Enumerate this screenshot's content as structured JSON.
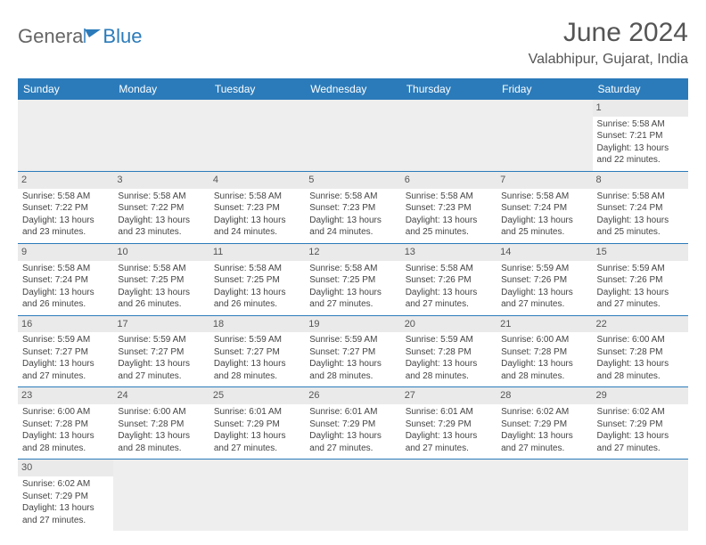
{
  "logo": {
    "part1": "Genera",
    "part2": "Blue"
  },
  "title": "June 2024",
  "location": "Valabhipur, Gujarat, India",
  "colors": {
    "header_bg": "#2b7bba",
    "header_fg": "#ffffff",
    "daynum_bg": "#eaeaea",
    "border": "#2b7bba",
    "text": "#444444"
  },
  "weekdays": [
    "Sunday",
    "Monday",
    "Tuesday",
    "Wednesday",
    "Thursday",
    "Friday",
    "Saturday"
  ],
  "first_weekday_index": 6,
  "days": [
    {
      "n": 1,
      "sr": "5:58 AM",
      "ss": "7:21 PM",
      "dl": "13 hours and 22 minutes."
    },
    {
      "n": 2,
      "sr": "5:58 AM",
      "ss": "7:22 PM",
      "dl": "13 hours and 23 minutes."
    },
    {
      "n": 3,
      "sr": "5:58 AM",
      "ss": "7:22 PM",
      "dl": "13 hours and 23 minutes."
    },
    {
      "n": 4,
      "sr": "5:58 AM",
      "ss": "7:23 PM",
      "dl": "13 hours and 24 minutes."
    },
    {
      "n": 5,
      "sr": "5:58 AM",
      "ss": "7:23 PM",
      "dl": "13 hours and 24 minutes."
    },
    {
      "n": 6,
      "sr": "5:58 AM",
      "ss": "7:23 PM",
      "dl": "13 hours and 25 minutes."
    },
    {
      "n": 7,
      "sr": "5:58 AM",
      "ss": "7:24 PM",
      "dl": "13 hours and 25 minutes."
    },
    {
      "n": 8,
      "sr": "5:58 AM",
      "ss": "7:24 PM",
      "dl": "13 hours and 25 minutes."
    },
    {
      "n": 9,
      "sr": "5:58 AM",
      "ss": "7:24 PM",
      "dl": "13 hours and 26 minutes."
    },
    {
      "n": 10,
      "sr": "5:58 AM",
      "ss": "7:25 PM",
      "dl": "13 hours and 26 minutes."
    },
    {
      "n": 11,
      "sr": "5:58 AM",
      "ss": "7:25 PM",
      "dl": "13 hours and 26 minutes."
    },
    {
      "n": 12,
      "sr": "5:58 AM",
      "ss": "7:25 PM",
      "dl": "13 hours and 27 minutes."
    },
    {
      "n": 13,
      "sr": "5:58 AM",
      "ss": "7:26 PM",
      "dl": "13 hours and 27 minutes."
    },
    {
      "n": 14,
      "sr": "5:59 AM",
      "ss": "7:26 PM",
      "dl": "13 hours and 27 minutes."
    },
    {
      "n": 15,
      "sr": "5:59 AM",
      "ss": "7:26 PM",
      "dl": "13 hours and 27 minutes."
    },
    {
      "n": 16,
      "sr": "5:59 AM",
      "ss": "7:27 PM",
      "dl": "13 hours and 27 minutes."
    },
    {
      "n": 17,
      "sr": "5:59 AM",
      "ss": "7:27 PM",
      "dl": "13 hours and 27 minutes."
    },
    {
      "n": 18,
      "sr": "5:59 AM",
      "ss": "7:27 PM",
      "dl": "13 hours and 28 minutes."
    },
    {
      "n": 19,
      "sr": "5:59 AM",
      "ss": "7:27 PM",
      "dl": "13 hours and 28 minutes."
    },
    {
      "n": 20,
      "sr": "5:59 AM",
      "ss": "7:28 PM",
      "dl": "13 hours and 28 minutes."
    },
    {
      "n": 21,
      "sr": "6:00 AM",
      "ss": "7:28 PM",
      "dl": "13 hours and 28 minutes."
    },
    {
      "n": 22,
      "sr": "6:00 AM",
      "ss": "7:28 PM",
      "dl": "13 hours and 28 minutes."
    },
    {
      "n": 23,
      "sr": "6:00 AM",
      "ss": "7:28 PM",
      "dl": "13 hours and 28 minutes."
    },
    {
      "n": 24,
      "sr": "6:00 AM",
      "ss": "7:28 PM",
      "dl": "13 hours and 28 minutes."
    },
    {
      "n": 25,
      "sr": "6:01 AM",
      "ss": "7:29 PM",
      "dl": "13 hours and 27 minutes."
    },
    {
      "n": 26,
      "sr": "6:01 AM",
      "ss": "7:29 PM",
      "dl": "13 hours and 27 minutes."
    },
    {
      "n": 27,
      "sr": "6:01 AM",
      "ss": "7:29 PM",
      "dl": "13 hours and 27 minutes."
    },
    {
      "n": 28,
      "sr": "6:02 AM",
      "ss": "7:29 PM",
      "dl": "13 hours and 27 minutes."
    },
    {
      "n": 29,
      "sr": "6:02 AM",
      "ss": "7:29 PM",
      "dl": "13 hours and 27 minutes."
    },
    {
      "n": 30,
      "sr": "6:02 AM",
      "ss": "7:29 PM",
      "dl": "13 hours and 27 minutes."
    }
  ],
  "labels": {
    "sunrise": "Sunrise:",
    "sunset": "Sunset:",
    "daylight": "Daylight:"
  }
}
